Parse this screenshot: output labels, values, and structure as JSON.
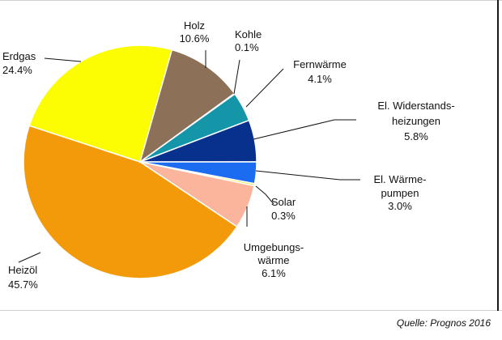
{
  "chart_data": {
    "type": "pie",
    "slices": [
      {
        "name": "Kohle",
        "value": 0.1,
        "label": "0.1%",
        "color": "#6b2f1f"
      },
      {
        "name": "Fernwärme",
        "value": 4.1,
        "label": "4.1%",
        "color": "#1596a8"
      },
      {
        "name": "El. Widerstands-heizungen",
        "value": 5.8,
        "label": "5.8%",
        "color": "#08308d"
      },
      {
        "name": "El. Wärme-pumpen",
        "value": 3.0,
        "label": "3.0%",
        "color": "#1b6cf0"
      },
      {
        "name": "Solar",
        "value": 0.3,
        "label": "0.3%",
        "color": "#e8e84a"
      },
      {
        "name": "Umgebungs-wärme",
        "value": 6.1,
        "label": "6.1%",
        "color": "#fbb59d"
      },
      {
        "name": "Heizöl",
        "value": 45.7,
        "label": "45.7%",
        "color": "#f39a0b"
      },
      {
        "name": "Erdgas",
        "value": 24.4,
        "label": "24.4%",
        "color": "#fcfd02"
      },
      {
        "name": "Holz",
        "value": 10.6,
        "label": "10.6%",
        "color": "#8c7058"
      }
    ]
  },
  "labels": {
    "holz": {
      "line1": "Holz",
      "line2": "10.6%"
    },
    "kohle": {
      "line1": "Kohle",
      "line2": "0.1%"
    },
    "fernwaerme": {
      "line1": "Fernwärme",
      "line2": "4.1%"
    },
    "widerstand": {
      "line1": "El. Widerstands-",
      "line2": "heizungen",
      "line3": "5.8%"
    },
    "waermepumpe": {
      "line1": "El. Wärme-",
      "line2": "pumpen",
      "line3": "3.0%"
    },
    "solar": {
      "line1": "Solar",
      "line2": "0.3%"
    },
    "umgebung": {
      "line1": "Umgebungs-",
      "line2": "wärme",
      "line3": "6.1%"
    },
    "heizoel": {
      "line1": "Heizöl",
      "line2": "45.7%"
    },
    "erdgas": {
      "line1": "Erdgas",
      "line2": "24.4%"
    }
  },
  "source": "Quelle: Prognos 2016"
}
